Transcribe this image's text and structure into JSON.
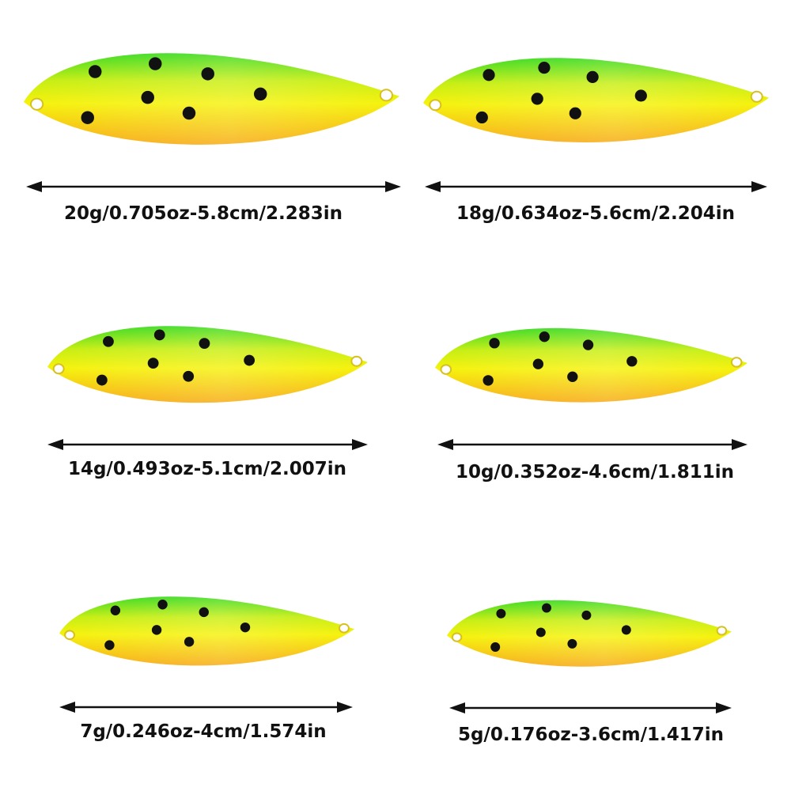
{
  "colors": {
    "top_green": "#33d916",
    "yellow": "#f6f20b",
    "bottom_orange": "#f7a90e",
    "spot": "#111111",
    "arrow": "#111111"
  },
  "lures": [
    {
      "label": "20g/0.705oz-5.8cm/2.283in"
    },
    {
      "label": "18g/0.634oz-5.6cm/2.204in"
    },
    {
      "label": "14g/0.493oz-5.1cm/2.007in"
    },
    {
      "label": "10g/0.352oz-4.6cm/1.811in"
    },
    {
      "label": "7g/0.246oz-4cm/1.574in"
    },
    {
      "label": "5g/0.176oz-3.6cm/1.417in"
    }
  ]
}
